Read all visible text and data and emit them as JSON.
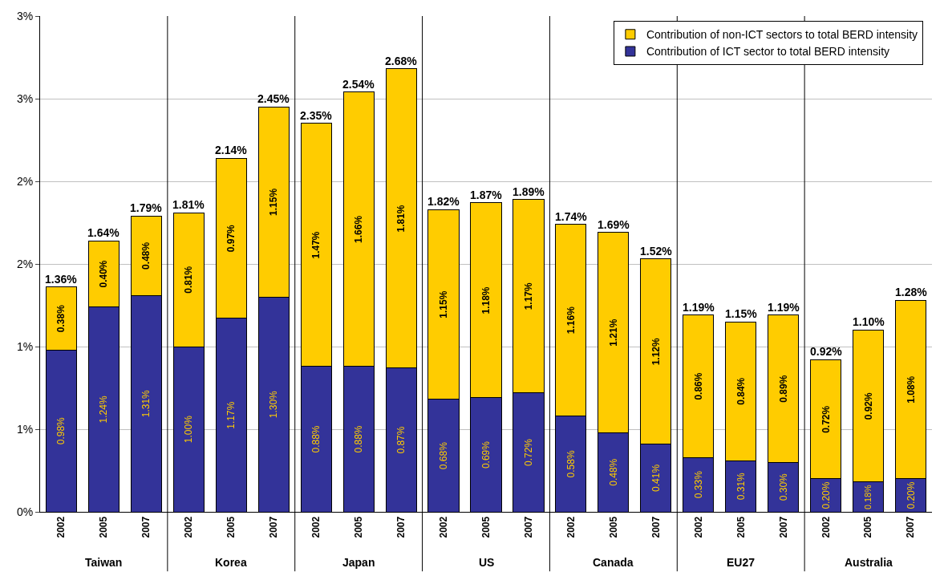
{
  "chart_data": {
    "type": "bar",
    "stacked": true,
    "categories": [
      "2002",
      "2005",
      "2007",
      "2002",
      "2005",
      "2007",
      "2002",
      "2005",
      "2007",
      "2002",
      "2005",
      "2007",
      "2002",
      "2005",
      "2007",
      "2002",
      "2005",
      "2007",
      "2002",
      "2005",
      "2007"
    ],
    "series": [
      {
        "name": "Contribution of ICT sector to total BERD intensity",
        "color": "#333399",
        "values": [
          0.98,
          1.24,
          1.31,
          1.0,
          1.17,
          1.3,
          0.88,
          0.88,
          0.87,
          0.68,
          0.69,
          0.72,
          0.58,
          0.48,
          0.41,
          0.33,
          0.31,
          0.3,
          0.2,
          0.18,
          0.2
        ],
        "value_labels": [
          "0.98%",
          "1.24%",
          "1.31%",
          "1.00%",
          "1.17%",
          "1.30%",
          "0.88%",
          "0.88%",
          "0.87%",
          "0.68%",
          "0.69%",
          "0.72%",
          "0.58%",
          "0.48%",
          "0.41%",
          "0.33%",
          "0.31%",
          "0.30%",
          "0.20%",
          "0.18%",
          "0.20%"
        ]
      },
      {
        "name": "Contribution of non-ICT sectors to total BERD intensity",
        "color": "#ffcc00",
        "values": [
          0.38,
          0.4,
          0.48,
          0.81,
          0.97,
          1.15,
          1.47,
          1.66,
          1.81,
          1.15,
          1.18,
          1.17,
          1.16,
          1.21,
          1.12,
          0.86,
          0.84,
          0.89,
          0.72,
          0.92,
          1.08
        ],
        "value_labels": [
          "0.38%",
          "0.40%",
          "0.48%",
          "0.81%",
          "0.97%",
          "1.15%",
          "1.47%",
          "1.66%",
          "1.81%",
          "1.15%",
          "1.18%",
          "1.17%",
          "1.16%",
          "1.21%",
          "1.12%",
          "0.86%",
          "0.84%",
          "0.89%",
          "0.72%",
          "0.92%",
          "1.08%"
        ]
      }
    ],
    "totals": [
      "1.36%",
      "1.64%",
      "1.79%",
      "1.81%",
      "2.14%",
      "2.45%",
      "2.35%",
      "2.54%",
      "2.68%",
      "1.82%",
      "1.87%",
      "1.89%",
      "1.74%",
      "1.69%",
      "1.52%",
      "1.19%",
      "1.15%",
      "1.19%",
      "0.92%",
      "1.10%",
      "1.28%"
    ],
    "annotations": [
      "Taiwan",
      "Korea",
      "Japan",
      "US",
      "Canada",
      "EU27",
      "Australia"
    ],
    "ylim": [
      0,
      3.0
    ],
    "yticks": [
      {
        "value": 0,
        "label": "0%"
      },
      {
        "value": 0.5,
        "label": "1%"
      },
      {
        "value": 1.0,
        "label": "1%"
      },
      {
        "value": 1.5,
        "label": "2%"
      },
      {
        "value": 2.0,
        "label": "2%"
      },
      {
        "value": 2.5,
        "label": "3%"
      },
      {
        "value": 3.0,
        "label": "3%"
      }
    ],
    "grid": "y",
    "legend": "top right"
  }
}
